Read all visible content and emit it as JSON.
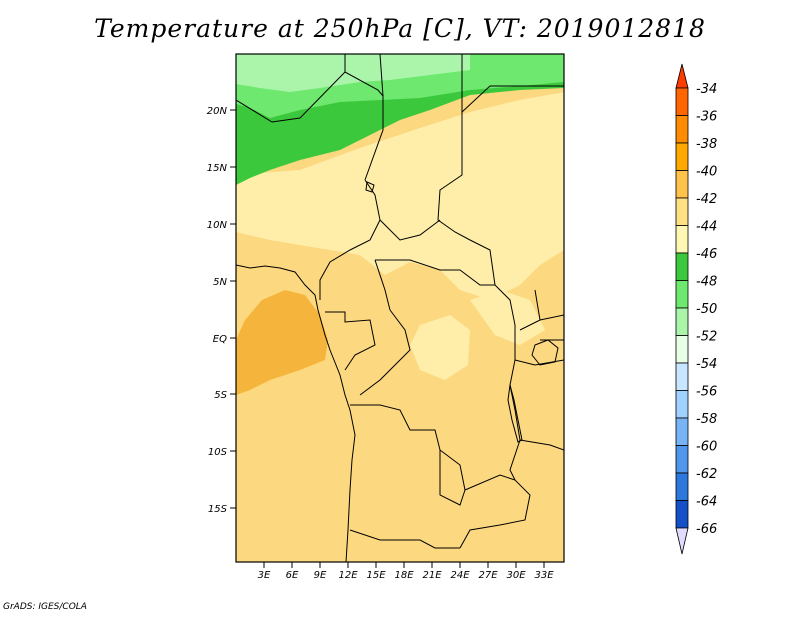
{
  "title": "Temperature at 250hPa [C], VT: 2019012818",
  "credit": "GrADS: IGES/COLA",
  "lat_labels": [
    "20N",
    "15N",
    "10N",
    "5N",
    "EQ",
    "5S",
    "10S",
    "15S"
  ],
  "lon_labels": [
    "3E",
    "6E",
    "9E",
    "12E",
    "15E",
    "18E",
    "21E",
    "24E",
    "27E",
    "30E",
    "33E"
  ],
  "colorbar": {
    "labels": [
      "-34",
      "-36",
      "-38",
      "-40",
      "-42",
      "-44",
      "-46",
      "-48",
      "-50",
      "-52",
      "-54",
      "-56",
      "-58",
      "-60",
      "-62",
      "-64",
      "-66"
    ],
    "colors": [
      "#ff6600",
      "#ff8c00",
      "#ffa800",
      "#ffc24a",
      "#ffe083",
      "#fff7b4",
      "#3cc83c",
      "#6ee86e",
      "#aaf5aa",
      "#e6ffe6",
      "#c8e6ff",
      "#a0d2ff",
      "#78b4f5",
      "#5096eb",
      "#2d78dc",
      "#1450c8",
      "#0a1e87"
    ],
    "top_arrow_color": "#ff3c00",
    "bottom_arrow_color": "#e1dcff"
  },
  "field_colors": {
    "warm_core": "#f5b43c",
    "base": "#fcd980",
    "light": "#feeeaa",
    "green_dark": "#3cc83c",
    "green_mid": "#6ee86e",
    "green_light": "#aaf5aa"
  }
}
